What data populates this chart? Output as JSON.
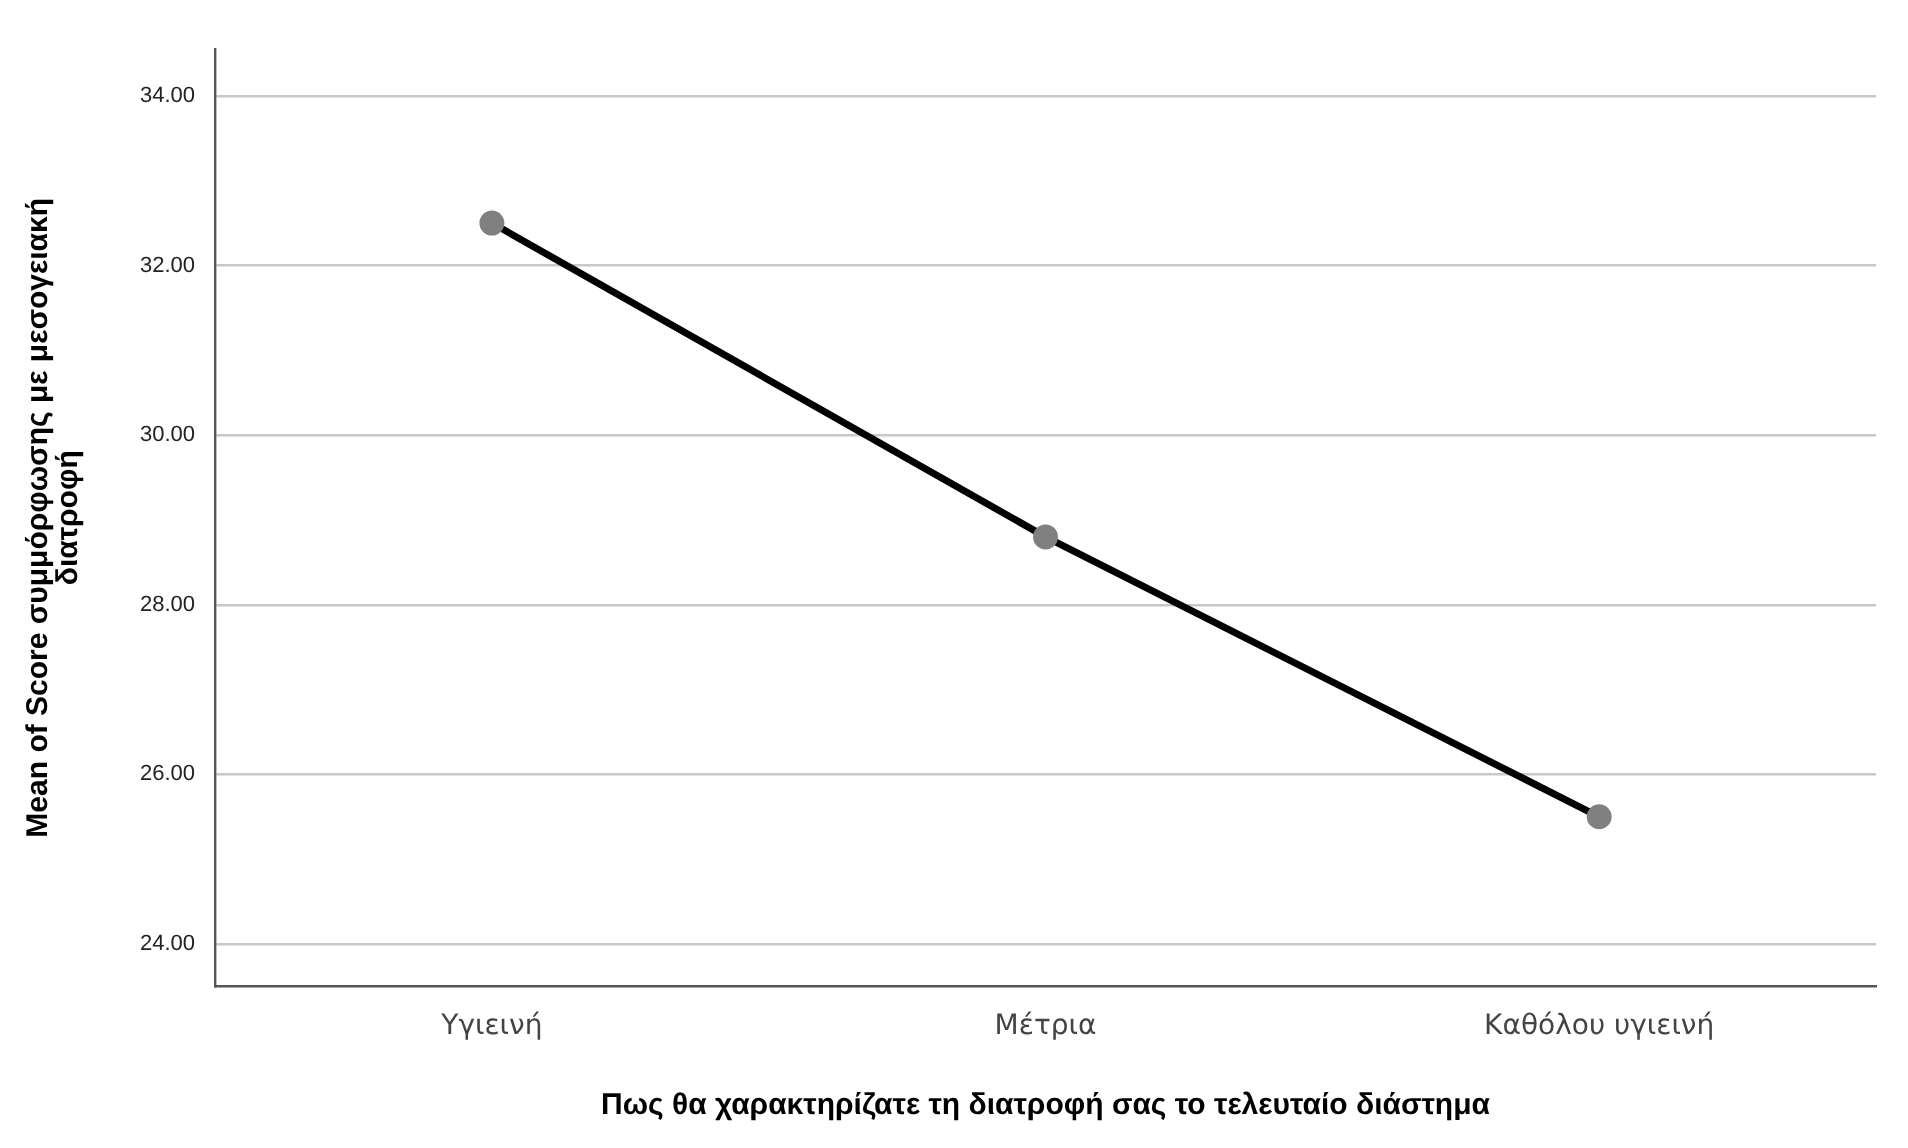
{
  "chart_data": {
    "type": "line",
    "xlabel": "Πως θα χαρακτηρίζατε τη διατροφή σας το τελευταίο διάστημα",
    "ylabel": "Mean of Score συμμόρφωσης με μεσογειακή διατροφή",
    "categories": [
      "Υγιεινή",
      "Μέτρια",
      "Καθόλου υγιεινή"
    ],
    "series": [
      {
        "color": "#000000",
        "values": [
          32.5,
          28.8,
          25.5
        ]
      }
    ],
    "ylim": [
      23.5,
      34.55
    ],
    "yticks": [
      {
        "value": 24,
        "label": "24.00"
      },
      {
        "value": 26,
        "label": "26.00"
      },
      {
        "value": 28,
        "label": "28.00"
      },
      {
        "value": 30,
        "label": "30.00"
      },
      {
        "value": 32,
        "label": "32.00"
      },
      {
        "value": 34,
        "label": "34.00"
      }
    ],
    "grid": "y",
    "legend": false,
    "marker": "circle",
    "line_style": "solid"
  }
}
